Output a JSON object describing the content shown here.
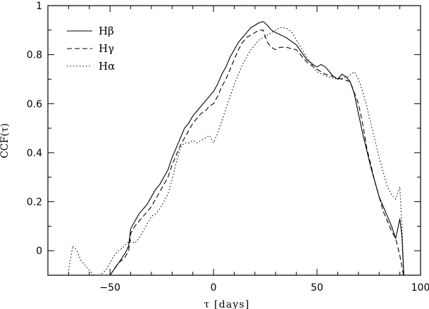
{
  "chart_data": {
    "type": "line",
    "xlabel": "τ [days]",
    "ylabel": "CCF(τ)",
    "xlim": [
      -80,
      100
    ],
    "ylim": [
      -0.1,
      1.0
    ],
    "xticks": [
      -50,
      0,
      50,
      100
    ],
    "yticks": [
      0,
      0.2,
      0.4,
      0.6,
      0.8,
      1
    ],
    "xtick_labels": [
      "−50",
      "0",
      "50",
      "100"
    ],
    "ytick_labels": [
      "0",
      "0.2",
      "0.4",
      "0.6",
      "0.8",
      "1"
    ],
    "grid": false,
    "legend_position": "top-left",
    "series": [
      {
        "name": "Hβ",
        "line_style": "solid",
        "color": "#000000",
        "x": [
          -50,
          -45,
          -42,
          -41,
          -40,
          -38,
          -36,
          -34,
          -32,
          -30,
          -28,
          -26,
          -24,
          -22,
          -20,
          -18,
          -16,
          -14,
          -12,
          -10,
          -8,
          -6,
          -4,
          -2,
          0,
          2,
          4,
          6,
          8,
          10,
          12,
          14,
          16,
          18,
          20,
          22,
          24,
          26,
          28,
          30,
          35,
          40,
          45,
          48,
          50,
          52,
          54,
          56,
          58,
          60,
          62,
          64,
          66,
          68,
          70,
          72,
          74,
          76,
          78,
          80,
          82,
          84,
          86,
          88,
          90,
          91,
          92
        ],
        "y": [
          -0.1,
          -0.04,
          0.0,
          0.02,
          0.09,
          0.12,
          0.15,
          0.17,
          0.19,
          0.22,
          0.25,
          0.27,
          0.3,
          0.33,
          0.38,
          0.42,
          0.46,
          0.5,
          0.52,
          0.55,
          0.57,
          0.59,
          0.61,
          0.63,
          0.65,
          0.68,
          0.72,
          0.75,
          0.79,
          0.82,
          0.85,
          0.87,
          0.89,
          0.91,
          0.92,
          0.93,
          0.935,
          0.92,
          0.9,
          0.89,
          0.87,
          0.84,
          0.78,
          0.76,
          0.75,
          0.76,
          0.75,
          0.73,
          0.71,
          0.7,
          0.72,
          0.71,
          0.69,
          0.64,
          0.56,
          0.48,
          0.41,
          0.34,
          0.28,
          0.22,
          0.18,
          0.14,
          0.1,
          0.05,
          0.13,
          0.06,
          -0.12
        ]
      },
      {
        "name": "Hγ",
        "line_style": "dashed",
        "color": "#000000",
        "x": [
          -50,
          -46,
          -43,
          -41,
          -40,
          -38,
          -36,
          -34,
          -32,
          -30,
          -28,
          -26,
          -24,
          -22,
          -20,
          -18,
          -16,
          -14,
          -12,
          -10,
          -8,
          -6,
          -4,
          -2,
          0,
          2,
          4,
          6,
          8,
          10,
          12,
          14,
          16,
          18,
          20,
          22,
          24,
          26,
          28,
          30,
          32,
          35,
          40,
          45,
          50,
          54,
          58,
          62,
          66,
          70,
          72,
          74,
          76,
          78,
          80,
          82,
          84,
          86,
          88,
          90,
          92
        ],
        "y": [
          -0.1,
          -0.05,
          -0.03,
          0.0,
          0.07,
          0.1,
          0.12,
          0.14,
          0.16,
          0.18,
          0.21,
          0.24,
          0.27,
          0.3,
          0.35,
          0.39,
          0.43,
          0.46,
          0.49,
          0.52,
          0.54,
          0.56,
          0.57,
          0.59,
          0.6,
          0.63,
          0.67,
          0.7,
          0.74,
          0.78,
          0.82,
          0.85,
          0.87,
          0.88,
          0.89,
          0.9,
          0.9,
          0.85,
          0.83,
          0.82,
          0.83,
          0.83,
          0.82,
          0.77,
          0.74,
          0.72,
          0.71,
          0.7,
          0.69,
          0.6,
          0.52,
          0.42,
          0.35,
          0.28,
          0.22,
          0.16,
          0.12,
          0.08,
          0.05,
          -0.02,
          -0.11
        ]
      },
      {
        "name": "Hα",
        "line_style": "dotted",
        "color": "#000000",
        "x": [
          -70,
          -68,
          -66,
          -64,
          -62,
          -60,
          -58,
          -55,
          -52,
          -50,
          -48,
          -46,
          -44,
          -42,
          -40,
          -38,
          -36,
          -34,
          -32,
          -30,
          -28,
          -26,
          -24,
          -22,
          -20,
          -18,
          -16,
          -14,
          -12,
          -10,
          -8,
          -6,
          -4,
          -2,
          0,
          2,
          4,
          6,
          8,
          10,
          12,
          14,
          16,
          18,
          20,
          22,
          24,
          26,
          28,
          30,
          32,
          35,
          38,
          40,
          45,
          50,
          55,
          60,
          65,
          68,
          70,
          72,
          74,
          76,
          78,
          80,
          82,
          84,
          86,
          88,
          90,
          91,
          92
        ],
        "y": [
          -0.08,
          0.02,
          0.0,
          -0.04,
          -0.06,
          -0.08,
          -0.1,
          -0.1,
          -0.08,
          -0.05,
          -0.02,
          0.0,
          0.01,
          0.03,
          0.04,
          0.03,
          0.05,
          0.08,
          0.11,
          0.14,
          0.15,
          0.17,
          0.2,
          0.23,
          0.29,
          0.36,
          0.42,
          0.44,
          0.44,
          0.45,
          0.44,
          0.45,
          0.46,
          0.47,
          0.44,
          0.48,
          0.53,
          0.58,
          0.63,
          0.68,
          0.72,
          0.76,
          0.79,
          0.82,
          0.84,
          0.86,
          0.87,
          0.88,
          0.89,
          0.9,
          0.91,
          0.91,
          0.89,
          0.86,
          0.79,
          0.73,
          0.71,
          0.7,
          0.71,
          0.73,
          0.7,
          0.65,
          0.59,
          0.52,
          0.45,
          0.38,
          0.32,
          0.26,
          0.23,
          0.21,
          0.26,
          0.1,
          -0.1
        ]
      }
    ]
  }
}
